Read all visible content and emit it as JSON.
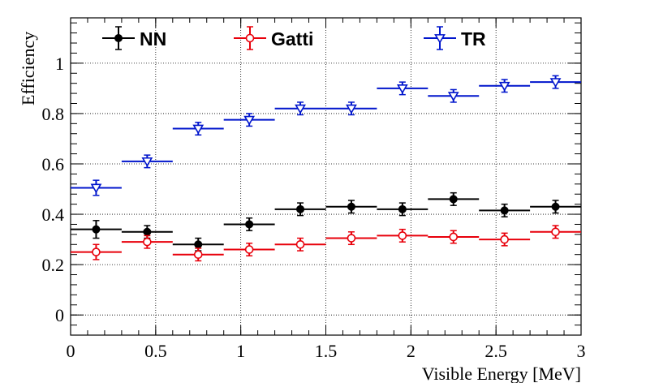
{
  "chart_data": {
    "type": "scatter",
    "title": "",
    "xlabel": "Visible Energy [MeV]",
    "ylabel": "Efficiency",
    "xlim": [
      0,
      3
    ],
    "ylim": [
      -0.08,
      1.18
    ],
    "xticks": [
      0,
      0.5,
      1,
      1.5,
      2,
      2.5,
      3
    ],
    "xtick_labels": [
      "0",
      "0.5",
      "1",
      "1.5",
      "2",
      "2.5",
      "3"
    ],
    "yticks": [
      0,
      0.2,
      0.4,
      0.6,
      0.8,
      1
    ],
    "ytick_labels": [
      "0",
      "0.2",
      "0.4",
      "0.6",
      "0.8",
      "1"
    ],
    "grid": true,
    "legend_position": "top",
    "bin_half_width": 0.15,
    "series": [
      {
        "name": "NN",
        "color": "#000000",
        "marker": "filled-circle",
        "x": [
          0.15,
          0.45,
          0.75,
          1.05,
          1.35,
          1.65,
          1.95,
          2.25,
          2.55,
          2.85
        ],
        "y": [
          0.34,
          0.33,
          0.28,
          0.36,
          0.42,
          0.43,
          0.42,
          0.46,
          0.415,
          0.43
        ],
        "yerr": [
          0.035,
          0.025,
          0.025,
          0.025,
          0.025,
          0.025,
          0.025,
          0.025,
          0.025,
          0.025
        ]
      },
      {
        "name": "Gatti",
        "color": "#e8000b",
        "marker": "open-circle",
        "x": [
          0.15,
          0.45,
          0.75,
          1.05,
          1.35,
          1.65,
          1.95,
          2.25,
          2.55,
          2.85
        ],
        "y": [
          0.25,
          0.29,
          0.24,
          0.26,
          0.28,
          0.305,
          0.315,
          0.31,
          0.3,
          0.33
        ],
        "yerr": [
          0.03,
          0.025,
          0.025,
          0.025,
          0.025,
          0.025,
          0.025,
          0.025,
          0.025,
          0.025
        ]
      },
      {
        "name": "TR",
        "color": "#0015cc",
        "marker": "open-triangle-down",
        "x": [
          0.15,
          0.45,
          0.75,
          1.05,
          1.35,
          1.65,
          1.95,
          2.25,
          2.55,
          2.85
        ],
        "y": [
          0.505,
          0.61,
          0.74,
          0.775,
          0.82,
          0.82,
          0.9,
          0.87,
          0.91,
          0.925
        ],
        "yerr": [
          0.03,
          0.025,
          0.025,
          0.025,
          0.025,
          0.025,
          0.025,
          0.025,
          0.025,
          0.025
        ]
      }
    ]
  }
}
